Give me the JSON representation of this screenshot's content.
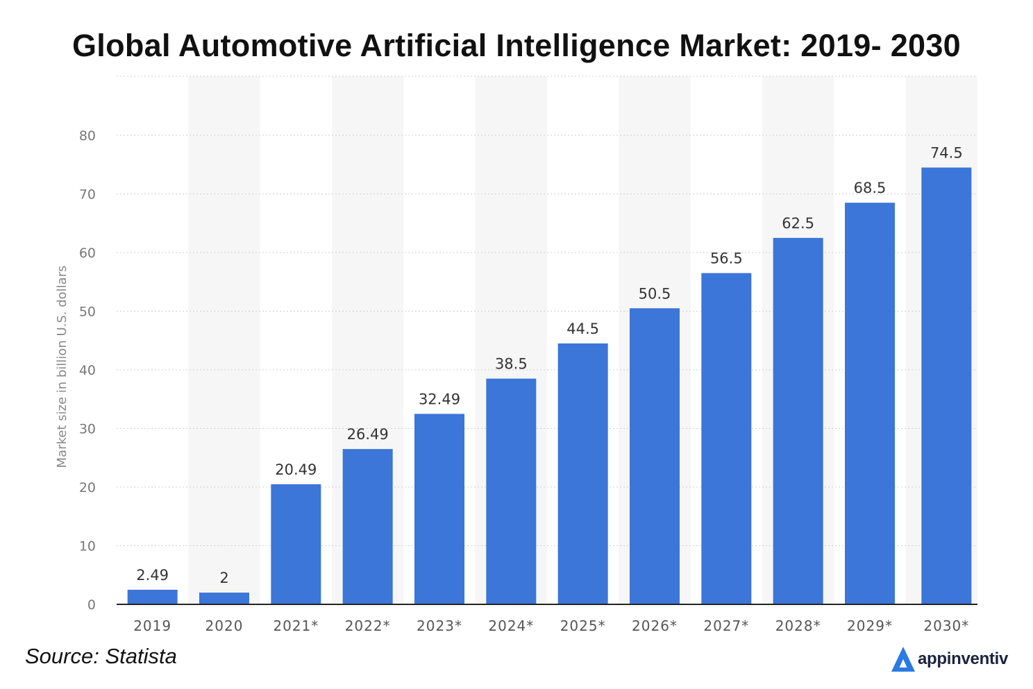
{
  "title": "Global Automotive Artificial Intelligence Market: 2019- 2030",
  "source": "Source: Statista",
  "brand": {
    "name": "appinventiv",
    "icon": "appinventiv-logo-icon",
    "color": "#2a7ae2"
  },
  "colors": {
    "bar": "#3b76d8",
    "band": "#f6f6f6",
    "grid": "#cfcfcf",
    "axis": "#222222",
    "tick": "#777777",
    "value_label": "#333333"
  },
  "chart_data": {
    "type": "bar",
    "categories": [
      "2019",
      "2020",
      "2021*",
      "2022*",
      "2023*",
      "2024*",
      "2025*",
      "2026*",
      "2027*",
      "2028*",
      "2029*",
      "2030*"
    ],
    "values": [
      2.49,
      2,
      20.49,
      26.49,
      32.49,
      38.5,
      44.5,
      50.5,
      56.5,
      62.5,
      68.5,
      74.5
    ],
    "value_labels": [
      "2.49",
      "2",
      "20.49",
      "26.49",
      "32.49",
      "38.5",
      "44.5",
      "50.5",
      "56.5",
      "62.5",
      "68.5",
      "74.5"
    ],
    "title": "Global Automotive Artificial Intelligence Market: 2019- 2030",
    "xlabel": "",
    "ylabel": "Market size in billion U.S. dollars",
    "ylim": [
      0,
      80
    ],
    "yticks": [
      0,
      10,
      20,
      30,
      40,
      50,
      60,
      70,
      80
    ],
    "grid": true
  }
}
